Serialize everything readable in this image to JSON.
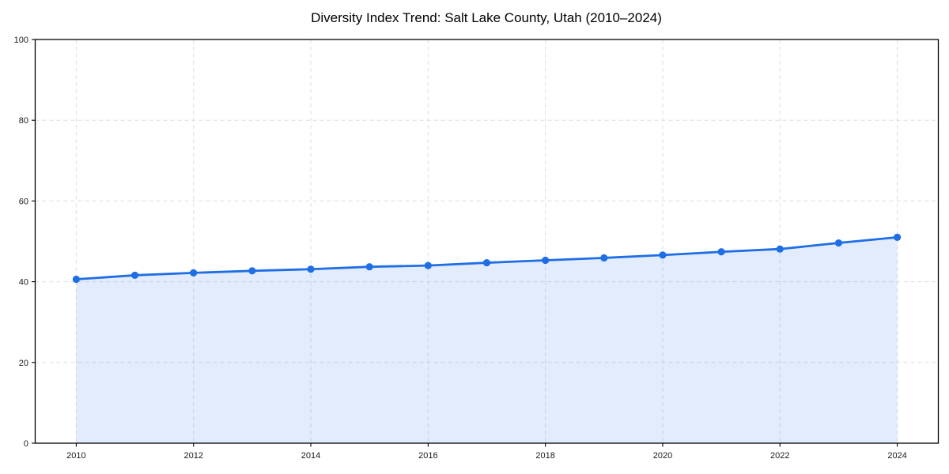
{
  "figure": {
    "background": "#ffffff",
    "title": "Diversity Index Trend: Salt Lake County, Utah (2010–2024)"
  },
  "chart_data": {
    "type": "line",
    "title": "Diversity Index Trend: Salt Lake County, Utah (2010–2024)",
    "series": [
      {
        "name": "Diversity Index",
        "x": [
          2010,
          2011,
          2012,
          2013,
          2014,
          2015,
          2016,
          2017,
          2018,
          2019,
          2020,
          2021,
          2022,
          2023,
          2024
        ],
        "y": [
          40.6,
          41.6,
          42.2,
          42.7,
          43.1,
          43.7,
          44.0,
          44.7,
          45.3,
          45.9,
          46.6,
          47.4,
          48.1,
          49.6,
          51.0
        ]
      }
    ],
    "xlabel": "",
    "ylabel": "",
    "xlim": [
      2009.3,
      2024.7
    ],
    "ylim": [
      0,
      100
    ],
    "xticks": [
      2010,
      2012,
      2014,
      2016,
      2018,
      2020,
      2022,
      2024
    ],
    "yticks": [
      0,
      20,
      40,
      60,
      80,
      100
    ],
    "grid": true,
    "grid_style": "dashed",
    "legend_position": "none",
    "marker": "circle",
    "area_fill_to_zero": true,
    "colors": {
      "line": "#1f6ee6",
      "fill_opacity": 0.13,
      "grid": "#dedede",
      "spine": "#000000",
      "tick_text": "#1a1a1a",
      "title_text": "#000000"
    }
  }
}
